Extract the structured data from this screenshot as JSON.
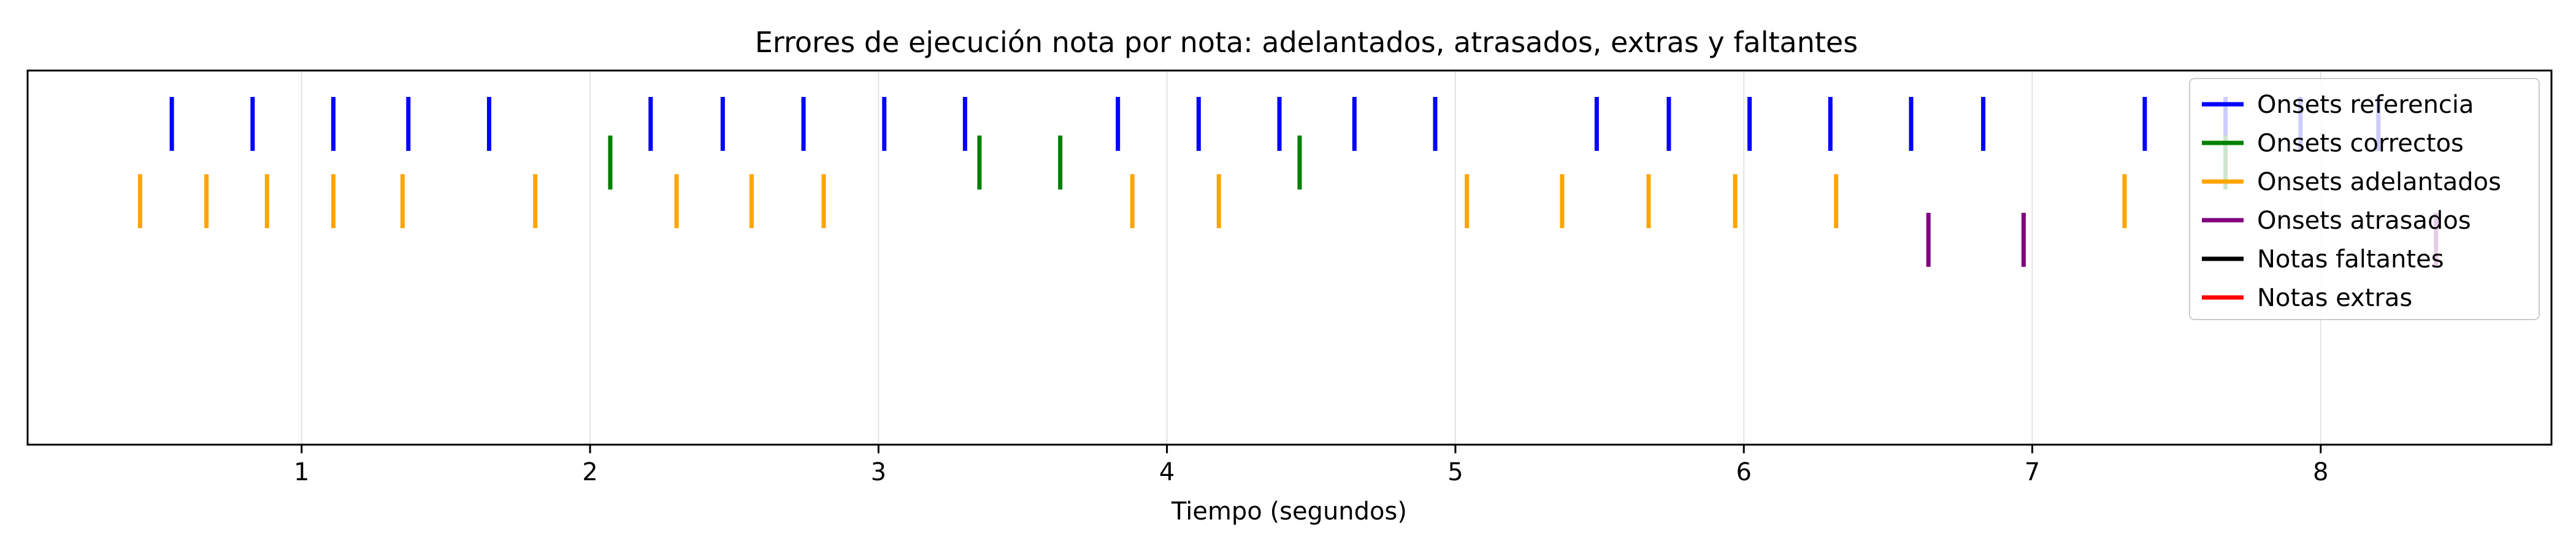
{
  "chart_data": {
    "type": "event_plot",
    "title": "Errores de ejecución nota por nota: adelantados, atrasados, extras y faltantes",
    "xlabel": "Tiempo (segundos)",
    "ylabel": "",
    "xlim": [
      0.05,
      8.8
    ],
    "xticks": [
      1,
      2,
      3,
      4,
      5,
      6,
      7,
      8
    ],
    "grid": true,
    "legend_position": "top-right",
    "series": [
      {
        "name": "Onsets referencia",
        "color": "#0000ff",
        "row": 0,
        "x": [
          0.55,
          0.83,
          1.11,
          1.37,
          1.65,
          2.21,
          2.46,
          2.74,
          3.02,
          3.3,
          3.83,
          4.11,
          4.39,
          4.65,
          4.93,
          5.49,
          5.74,
          6.02,
          6.3,
          6.58,
          6.83,
          7.39,
          7.67,
          7.93,
          8.2
        ]
      },
      {
        "name": "Onsets correctos",
        "color": "#008000",
        "row": 1,
        "x": [
          2.07,
          3.35,
          3.63,
          4.46,
          7.67
        ]
      },
      {
        "name": "Onsets adelantados",
        "color": "#ffa500",
        "row": 2,
        "x": [
          0.44,
          0.67,
          0.88,
          1.11,
          1.35,
          1.81,
          2.3,
          2.56,
          2.81,
          3.88,
          4.18,
          5.04,
          5.37,
          5.67,
          5.97,
          6.32,
          7.32
        ]
      },
      {
        "name": "Onsets atrasados",
        "color": "#800080",
        "row": 3,
        "x": [
          6.64,
          6.97,
          8.4
        ]
      },
      {
        "name": "Notas faltantes",
        "color": "#000000",
        "row": 4,
        "x": []
      },
      {
        "name": "Notas extras",
        "color": "#ff0000",
        "row": 5,
        "x": []
      }
    ]
  }
}
